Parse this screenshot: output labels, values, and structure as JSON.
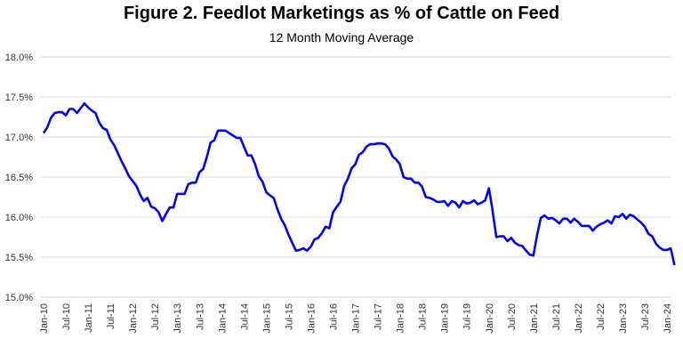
{
  "chart_data": {
    "type": "line",
    "title": "Figure 2. Feedlot Marketings as % of Cattle on Feed",
    "subtitle": "12 Month Moving Average",
    "xlabel": "",
    "ylabel": "",
    "ylim": [
      15.0,
      18.0
    ],
    "yticks": [
      "15.0%",
      "15.5%",
      "16.0%",
      "16.5%",
      "17.0%",
      "17.5%",
      "18.0%"
    ],
    "xticks": [
      "Jan-10",
      "Jul-10",
      "Jan-11",
      "Jul-11",
      "Jan-12",
      "Jul-12",
      "Jan-13",
      "Jul-13",
      "Jan-14",
      "Jul-14",
      "Jan-15",
      "Jul-15",
      "Jan-16",
      "Jul-16",
      "Jan-17",
      "Jul-17",
      "Jan-18",
      "Jul-18",
      "Jan-19",
      "Jul-19",
      "Jan-20",
      "Jul-20",
      "Jan-21",
      "Jul-21",
      "Jan-22",
      "Jul-22",
      "Jan-23",
      "Jul-23",
      "Jan-24"
    ],
    "grid": true,
    "color": "#0000ff",
    "series": [
      {
        "name": "12 Month Moving Average",
        "start": "Jan-10",
        "values": [
          17.05,
          17.12,
          17.24,
          17.3,
          17.31,
          17.31,
          17.27,
          17.35,
          17.35,
          17.3,
          17.36,
          17.42,
          17.37,
          17.33,
          17.3,
          17.18,
          17.11,
          17.09,
          16.97,
          16.9,
          16.8,
          16.7,
          16.61,
          16.51,
          16.45,
          16.39,
          16.28,
          16.2,
          16.24,
          16.13,
          16.11,
          16.06,
          15.95,
          16.04,
          16.12,
          16.12,
          16.29,
          16.29,
          16.29,
          16.41,
          16.43,
          16.43,
          16.56,
          16.6,
          16.75,
          16.93,
          16.96,
          17.08,
          17.08,
          17.08,
          17.05,
          17.02,
          16.99,
          16.99,
          16.88,
          16.77,
          16.77,
          16.66,
          16.51,
          16.44,
          16.31,
          16.27,
          16.24,
          16.1,
          15.98,
          15.9,
          15.78,
          15.68,
          15.58,
          15.59,
          15.61,
          15.58,
          15.63,
          15.72,
          15.74,
          15.8,
          15.88,
          15.86,
          16.06,
          16.13,
          16.19,
          16.39,
          16.48,
          16.61,
          16.66,
          16.78,
          16.81,
          16.88,
          16.91,
          16.91,
          16.92,
          16.92,
          16.91,
          16.86,
          16.76,
          16.72,
          16.66,
          16.5,
          16.48,
          16.48,
          16.43,
          16.43,
          16.38,
          16.25,
          16.24,
          16.22,
          16.19,
          16.19,
          16.2,
          16.14,
          16.2,
          16.18,
          16.12,
          16.2,
          16.17,
          16.18,
          16.21,
          16.16,
          16.18,
          16.21,
          16.36,
          16.08,
          15.75,
          15.76,
          15.76,
          15.7,
          15.74,
          15.68,
          15.65,
          15.64,
          15.58,
          15.53,
          15.52,
          15.78,
          15.99,
          16.02,
          15.98,
          15.99,
          15.96,
          15.92,
          15.98,
          15.98,
          15.93,
          15.98,
          15.94,
          15.89,
          15.89,
          15.89,
          15.83,
          15.88,
          15.91,
          15.93,
          15.96,
          15.92,
          16.01,
          16.0,
          16.04,
          15.98,
          16.03,
          16.01,
          15.97,
          15.93,
          15.88,
          15.79,
          15.76,
          15.67,
          15.62,
          15.59,
          15.59,
          15.61,
          15.4
        ]
      }
    ]
  }
}
